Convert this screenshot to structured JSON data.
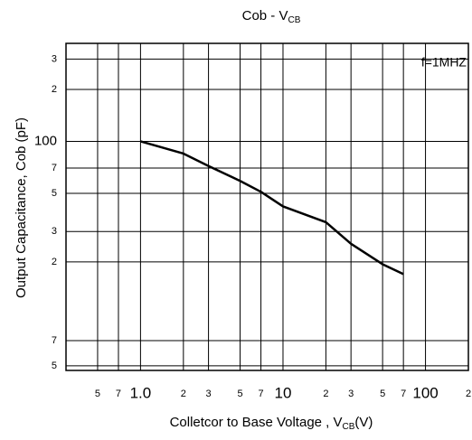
{
  "chart_data": {
    "type": "line",
    "title": "Cob - V",
    "title_sub": "CB",
    "x_label": "Colletcor to Base Voltage , V",
    "x_label_sub": "CB",
    "x_label_unit": "(V)",
    "y_label": "Output Capacitance, Cob (pF)",
    "annotation": "f=1MHZ",
    "xscale": "log",
    "yscale": "log",
    "grid": true,
    "x": [
      1,
      2,
      3,
      5,
      7,
      10,
      20,
      30,
      50,
      70
    ],
    "series": [
      {
        "color": "#000000",
        "values": [
          100,
          85,
          72,
          59,
          51,
          42,
          34,
          25.5,
          19.4,
          17
        ]
      }
    ],
    "xlim": [
      0.3,
      200
    ],
    "ylim": [
      4.7,
      370
    ],
    "xticks": [
      {
        "value": 0.5,
        "label": "5"
      },
      {
        "value": 0.7,
        "label": "7"
      },
      {
        "value": 1,
        "label": "1.0"
      },
      2,
      3,
      5,
      7,
      10,
      {
        "value": 20,
        "label": "2"
      },
      {
        "value": 30,
        "label": "3"
      },
      {
        "value": 50,
        "label": "5"
      },
      {
        "value": 70,
        "label": "7"
      },
      100,
      {
        "value": 200,
        "label": "2"
      }
    ],
    "yticks": [
      5,
      7,
      {
        "value": 20,
        "label": "2"
      },
      {
        "value": 30,
        "label": "3"
      },
      {
        "value": 50,
        "label": "5"
      },
      {
        "value": 70,
        "label": "7"
      },
      100,
      {
        "value": 200,
        "label": "2"
      },
      {
        "value": 300,
        "label": "3"
      }
    ]
  }
}
